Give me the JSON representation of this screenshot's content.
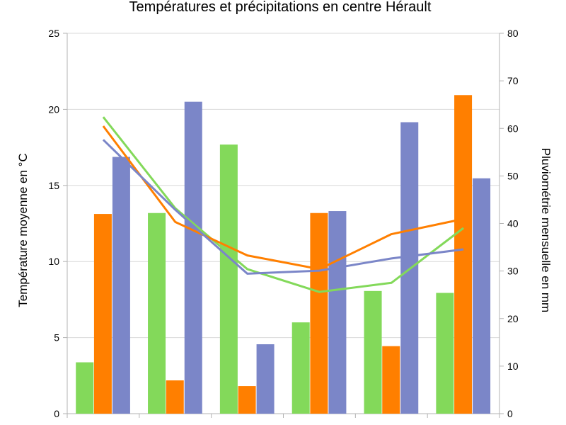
{
  "chart_data": {
    "type": "bar",
    "title": "Températures et précipitations en centre Hérault",
    "ylabel_left": "Température moyenne en °C",
    "ylabel_right": "Pluviométrie mensuelle en mm",
    "ylim_left": [
      0,
      25
    ],
    "ylim_right": [
      0,
      80
    ],
    "yticks_left": [
      "0",
      "5",
      "10",
      "15",
      "20",
      "25"
    ],
    "yticks_right": [
      "0",
      "10",
      "20",
      "30",
      "40",
      "50",
      "60",
      "70",
      "80"
    ],
    "categories": [
      "",
      "",
      "",
      "",
      "",
      ""
    ],
    "grid": true,
    "bar_series": [
      {
        "color": "#83d95a",
        "values": [
          10.8,
          42.2,
          56.6,
          19.2,
          25.8,
          25.4
        ]
      },
      {
        "color": "#ff7f00",
        "values": [
          42.0,
          7.0,
          5.8,
          42.2,
          14.2,
          67.0
        ]
      },
      {
        "color": "#7b86c8",
        "values": [
          54.0,
          65.6,
          14.6,
          42.6,
          61.3,
          49.5
        ]
      }
    ],
    "line_series": [
      {
        "color": "#83d95a",
        "values": [
          19.5,
          13.5,
          9.5,
          8.0,
          8.6,
          12.2
        ]
      },
      {
        "color": "#ff7f00",
        "values": [
          18.9,
          12.6,
          10.4,
          9.5,
          11.8,
          12.8
        ]
      },
      {
        "color": "#7b86c8",
        "values": [
          18.0,
          13.4,
          9.2,
          9.4,
          10.2,
          10.8
        ]
      }
    ]
  }
}
